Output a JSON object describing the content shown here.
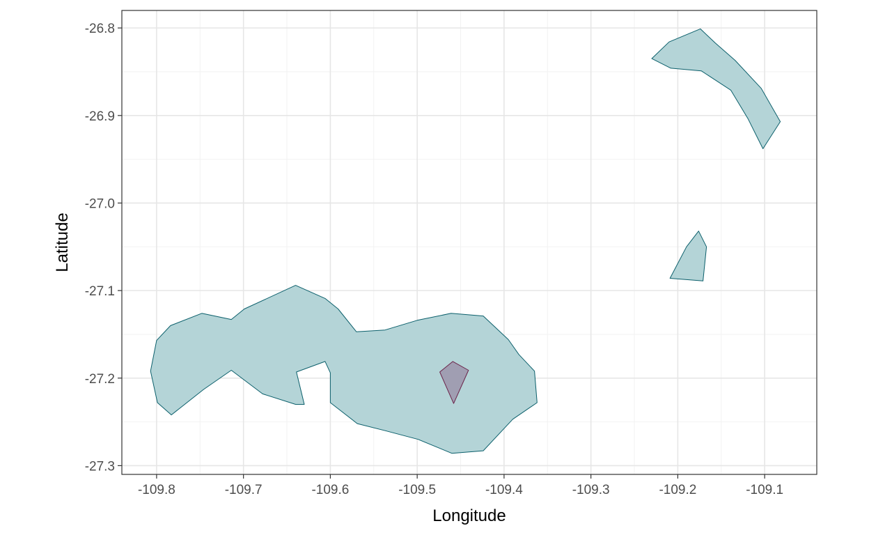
{
  "chart_data": {
    "type": "map-polygons",
    "xlabel": "Longitude",
    "ylabel": "Latitude",
    "xlim": [
      -109.84,
      -109.04
    ],
    "ylim": [
      -27.31,
      -26.78
    ],
    "x_ticks": [
      -109.8,
      -109.7,
      -109.6,
      -109.5,
      -109.4,
      -109.3,
      -109.2,
      -109.1
    ],
    "x_tick_labels": [
      "-109.8",
      "-109.7",
      "-109.6",
      "-109.5",
      "-109.4",
      "-109.3",
      "-109.2",
      "-109.1"
    ],
    "y_ticks": [
      -26.8,
      -26.9,
      -27.0,
      -27.1,
      -27.2,
      -27.3
    ],
    "y_tick_labels": [
      "-26.8",
      "-26.9",
      "-27.0",
      "-27.1",
      "-27.2",
      "-27.3"
    ],
    "grid": true,
    "theme": "bw",
    "polygons": [
      {
        "group": "main-island",
        "fill": "#b4d4d7",
        "stroke": "#0b5f6b",
        "points": [
          [
            -109.807,
            -27.192
          ],
          [
            -109.8,
            -27.157
          ],
          [
            -109.784,
            -27.14
          ],
          [
            -109.748,
            -27.126
          ],
          [
            -109.714,
            -27.133
          ],
          [
            -109.699,
            -27.121
          ],
          [
            -109.64,
            -27.094
          ],
          [
            -109.606,
            -27.109
          ],
          [
            -109.591,
            -27.121
          ],
          [
            -109.57,
            -27.147
          ],
          [
            -109.537,
            -27.145
          ],
          [
            -109.5,
            -27.134
          ],
          [
            -109.461,
            -27.126
          ],
          [
            -109.424,
            -27.129
          ],
          [
            -109.395,
            -27.156
          ],
          [
            -109.383,
            -27.173
          ],
          [
            -109.365,
            -27.192
          ],
          [
            -109.362,
            -27.228
          ],
          [
            -109.39,
            -27.247
          ],
          [
            -109.424,
            -27.283
          ],
          [
            -109.46,
            -27.286
          ],
          [
            -109.499,
            -27.27
          ],
          [
            -109.537,
            -27.26
          ],
          [
            -109.569,
            -27.252
          ],
          [
            -109.6,
            -27.228
          ],
          [
            -109.6,
            -27.194
          ],
          [
            -109.606,
            -27.181
          ],
          [
            -109.639,
            -27.193
          ],
          [
            -109.63,
            -27.23
          ],
          [
            -109.64,
            -27.23
          ],
          [
            -109.678,
            -27.218
          ],
          [
            -109.714,
            -27.191
          ],
          [
            -109.746,
            -27.213
          ],
          [
            -109.783,
            -27.242
          ],
          [
            -109.799,
            -27.228
          ]
        ]
      },
      {
        "group": "northeast-island",
        "fill": "#b4d4d7",
        "stroke": "#0b5f6b",
        "points": [
          [
            -109.23,
            -26.835
          ],
          [
            -109.21,
            -26.816
          ],
          [
            -109.174,
            -26.801
          ],
          [
            -109.157,
            -26.817
          ],
          [
            -109.134,
            -26.837
          ],
          [
            -109.104,
            -26.869
          ],
          [
            -109.082,
            -26.907
          ],
          [
            -109.102,
            -26.938
          ],
          [
            -109.119,
            -26.904
          ],
          [
            -109.139,
            -26.871
          ],
          [
            -109.173,
            -26.849
          ],
          [
            -109.208,
            -26.846
          ]
        ]
      },
      {
        "group": "east-islet",
        "fill": "#b4d4d7",
        "stroke": "#0b5f6b",
        "points": [
          [
            -109.209,
            -27.086
          ],
          [
            -109.19,
            -27.05
          ],
          [
            -109.176,
            -27.032
          ],
          [
            -109.167,
            -27.05
          ],
          [
            -109.171,
            -27.089
          ]
        ]
      },
      {
        "group": "highlight",
        "fill": "#a09eb2",
        "stroke": "#6b2349",
        "points": [
          [
            -109.474,
            -27.193
          ],
          [
            -109.459,
            -27.181
          ],
          [
            -109.441,
            -27.191
          ],
          [
            -109.458,
            -27.229
          ]
        ]
      }
    ]
  }
}
